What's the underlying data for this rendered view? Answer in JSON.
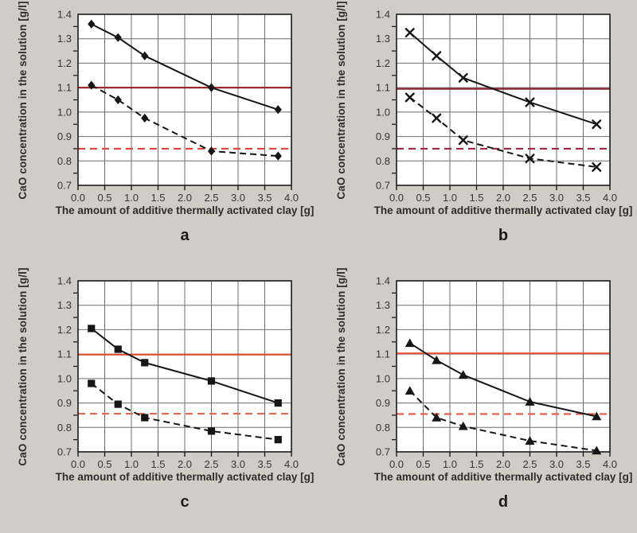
{
  "page": {
    "background_color": "#d2ccc6",
    "plot_background_color": "#ffffff",
    "grid_color": "#6e6e6e",
    "series_color": "#161616"
  },
  "axes": {
    "xlabel": "The amount of additive thermally activated clay [g]",
    "ylabel": "CaO concentration in the solution [g/l]",
    "xlim": [
      0.0,
      4.0
    ],
    "ylim": [
      0.7,
      1.4
    ],
    "xtick_step": 0.5,
    "ytick_step": 0.1,
    "xticks": [
      "0.0",
      "0.5",
      "1.0",
      "1.5",
      "2.0",
      "2.5",
      "3.0",
      "3.5",
      "4.0"
    ],
    "yticks": [
      "0.7",
      "0.8",
      "0.9",
      "1.0",
      "1.1",
      "1.2",
      "1.3",
      "1.4"
    ],
    "grid": true,
    "legend": "none"
  },
  "chart_data": [
    {
      "type": "line",
      "panel_label": "a",
      "marker": "diamond",
      "x": [
        0.25,
        0.75,
        1.25,
        2.5,
        3.75
      ],
      "series": [
        {
          "name": "upper solid line",
          "line_style": "solid",
          "values": [
            1.36,
            1.305,
            1.23,
            1.1,
            1.01
          ]
        },
        {
          "name": "lower dashed line",
          "line_style": "dashed",
          "values": [
            1.11,
            1.05,
            0.975,
            0.84,
            0.82
          ]
        }
      ],
      "ref_lines": [
        {
          "y": 1.1,
          "style": "solid",
          "color": "#94201e"
        },
        {
          "y": 0.85,
          "style": "dashed",
          "color": "#df453a"
        }
      ]
    },
    {
      "type": "line",
      "panel_label": "b",
      "marker": "x",
      "x": [
        0.25,
        0.75,
        1.25,
        2.5,
        3.75
      ],
      "series": [
        {
          "name": "upper solid line",
          "line_style": "solid",
          "values": [
            1.325,
            1.23,
            1.14,
            1.04,
            0.95
          ]
        },
        {
          "name": "lower dashed line",
          "line_style": "dashed",
          "values": [
            1.06,
            0.975,
            0.885,
            0.81,
            0.775
          ]
        }
      ],
      "ref_lines": [
        {
          "y": 1.095,
          "style": "solid",
          "color": "#8e2030"
        },
        {
          "y": 0.85,
          "style": "dashed",
          "color": "#9e2742"
        }
      ]
    },
    {
      "type": "line",
      "panel_label": "c",
      "marker": "square",
      "x": [
        0.25,
        0.75,
        1.25,
        2.5,
        3.75
      ],
      "series": [
        {
          "name": "upper solid line",
          "line_style": "solid",
          "values": [
            1.205,
            1.12,
            1.065,
            0.99,
            0.9
          ]
        },
        {
          "name": "lower dashed line",
          "line_style": "dashed",
          "values": [
            0.98,
            0.895,
            0.84,
            0.785,
            0.75
          ]
        }
      ],
      "ref_lines": [
        {
          "y": 1.098,
          "style": "solid",
          "color": "#e2472a"
        },
        {
          "y": 0.856,
          "style": "dashed",
          "color": "#e5674e"
        }
      ]
    },
    {
      "type": "line",
      "panel_label": "d",
      "marker": "triangle",
      "x": [
        0.25,
        0.75,
        1.25,
        2.5,
        3.75
      ],
      "series": [
        {
          "name": "upper solid line",
          "line_style": "solid",
          "values": [
            1.145,
            1.075,
            1.015,
            0.905,
            0.845
          ]
        },
        {
          "name": "lower dashed line",
          "line_style": "dashed",
          "values": [
            0.95,
            0.84,
            0.805,
            0.745,
            0.705
          ]
        }
      ],
      "ref_lines": [
        {
          "y": 1.103,
          "style": "solid",
          "color": "#e65038"
        },
        {
          "y": 0.855,
          "style": "dashed",
          "color": "#e45745"
        }
      ]
    }
  ]
}
